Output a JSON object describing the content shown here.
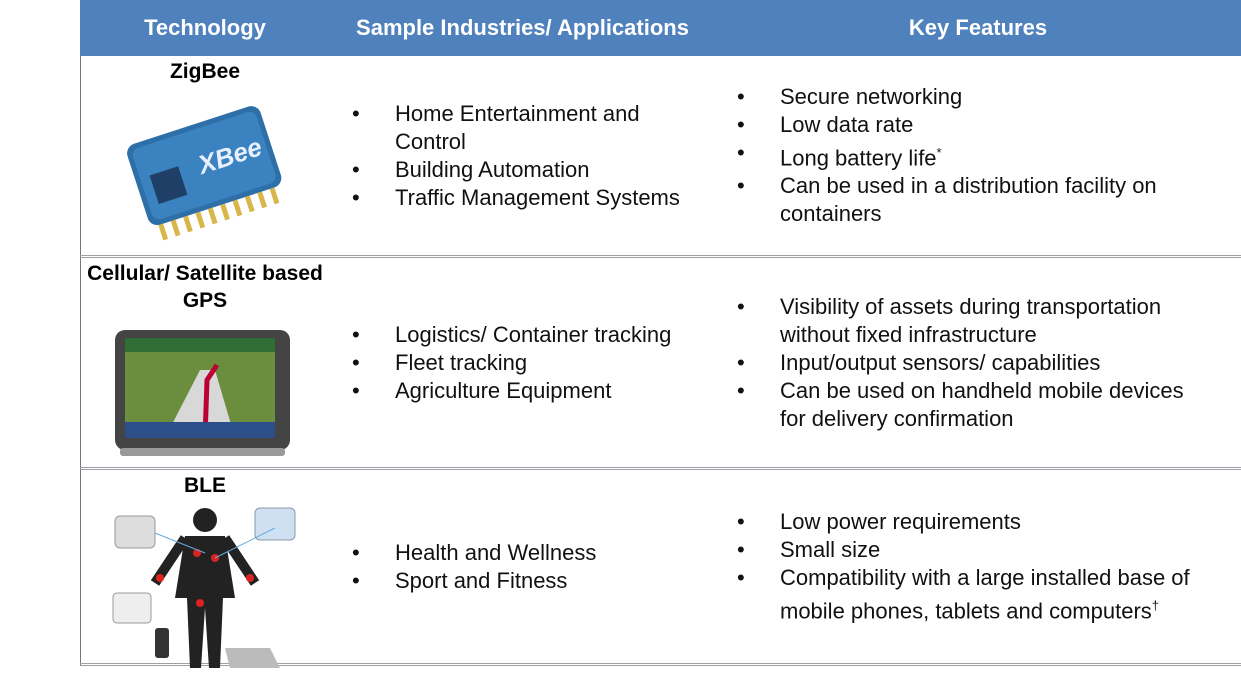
{
  "table": {
    "header": [
      "Technology",
      "Sample Industries/ Applications",
      "Key Features"
    ],
    "rows": [
      {
        "technology": "ZigBee",
        "applications": [
          "Home Entertainment and Control",
          "Building Automation",
          "Traffic Management Systems"
        ],
        "features": [
          {
            "text": "Secure networking"
          },
          {
            "text": "Low data rate"
          },
          {
            "text": "Long battery life",
            "sup": "*"
          },
          {
            "text": "Can be used in a distribution facility on containers"
          }
        ]
      },
      {
        "technology": "Cellular/ Satellite based GPS",
        "applications": [
          "Logistics/ Container tracking",
          "Fleet tracking",
          "Agriculture Equipment"
        ],
        "features": [
          {
            "text": "Visibility of assets during transportation without fixed infrastructure"
          },
          {
            "text": "Input/output sensors/ capabilities"
          },
          {
            "text": "Can be used on handheld mobile devices for delivery confirmation"
          }
        ]
      },
      {
        "technology": "BLE",
        "applications": [
          "Health and Wellness",
          "Sport and Fitness"
        ],
        "features": [
          {
            "text": "Low power requirements"
          },
          {
            "text": "Small size"
          },
          {
            "text": "Compatibility with a large installed base of mobile phones, tablets and computers",
            "sup": "†"
          }
        ]
      }
    ]
  }
}
